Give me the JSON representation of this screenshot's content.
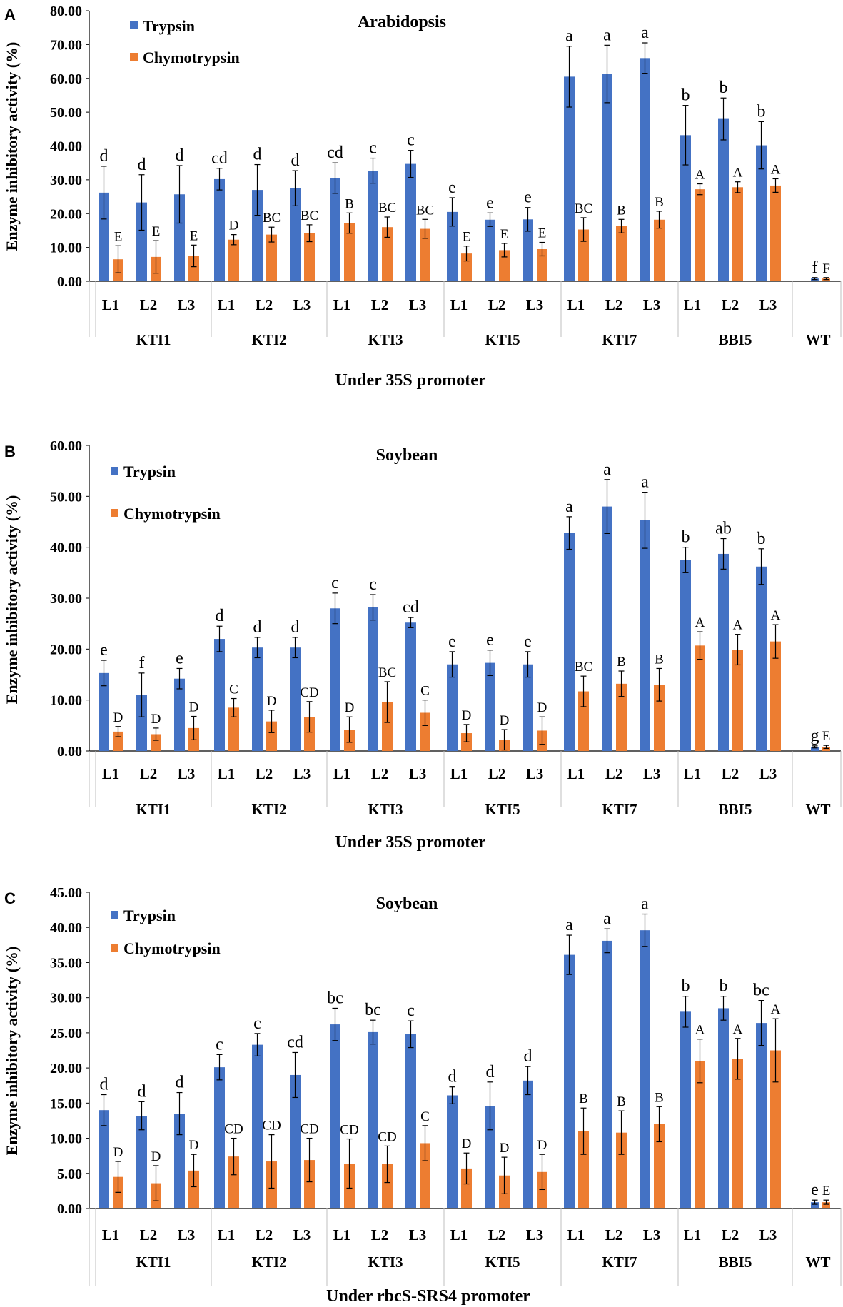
{
  "colors": {
    "trypsin": "#4472C4",
    "chymotrypsin": "#ED7D31",
    "axis": "#000000",
    "grid_sep": "#BFBFBF"
  },
  "chart_data": [
    {
      "panel": "A",
      "type": "bar",
      "title": "Arabidopsis",
      "ylabel": "Enzyme inhibitory activity (%)",
      "xlabel": "Under 35S promoter",
      "ylim": [
        0,
        80
      ],
      "ytick_step": 10,
      "yticks": [
        "0.00",
        "10.00",
        "20.00",
        "30.00",
        "40.00",
        "50.00",
        "60.00",
        "70.00",
        "80.00"
      ],
      "legend": [
        "Trypsin",
        "Chymotrypsin"
      ],
      "groups": [
        {
          "name": "KTI1",
          "lines": [
            "L1",
            "L2",
            "L3"
          ]
        },
        {
          "name": "KTI2",
          "lines": [
            "L1",
            "L2",
            "L3"
          ]
        },
        {
          "name": "KTI3",
          "lines": [
            "L1",
            "L2",
            "L3"
          ]
        },
        {
          "name": "KTI5",
          "lines": [
            "L1",
            "L2",
            "L3"
          ]
        },
        {
          "name": "KTI7",
          "lines": [
            "L1",
            "L2",
            "L3"
          ]
        },
        {
          "name": "BBI5",
          "lines": [
            "L1",
            "L2",
            "L3"
          ]
        },
        {
          "name": "WT",
          "lines": [
            ""
          ]
        }
      ],
      "series": [
        {
          "name": "Trypsin",
          "values": [
            26.2,
            23.3,
            25.7,
            30.2,
            27.0,
            27.5,
            30.5,
            32.7,
            34.7,
            20.5,
            18.2,
            18.3,
            60.5,
            61.3,
            66.0,
            43.2,
            48.0,
            40.2,
            0.8
          ],
          "errors": [
            7.8,
            8.2,
            8.5,
            3.2,
            7.5,
            5.2,
            4.5,
            3.7,
            4.0,
            4.2,
            2.0,
            3.5,
            9.0,
            8.5,
            4.5,
            8.8,
            6.2,
            7.0,
            0.3
          ],
          "letters": [
            "d",
            "d",
            "d",
            "cd",
            "d",
            "d",
            "cd",
            "c",
            "c",
            "e",
            "e",
            "e",
            "a",
            "a",
            "a",
            "b",
            "b",
            "b",
            "f"
          ]
        },
        {
          "name": "Chymotrypsin",
          "values": [
            6.5,
            7.2,
            7.5,
            12.3,
            13.8,
            14.2,
            17.2,
            16.0,
            15.5,
            8.2,
            9.2,
            9.5,
            15.3,
            16.3,
            18.2,
            27.2,
            27.8,
            28.3,
            0.8
          ],
          "errors": [
            4.0,
            4.8,
            3.2,
            1.5,
            2.2,
            2.5,
            3.0,
            3.0,
            2.8,
            2.2,
            2.0,
            2.0,
            3.5,
            2.0,
            2.5,
            1.6,
            1.6,
            2.0,
            0.3
          ],
          "letters": [
            "E",
            "E",
            "E",
            "D",
            "BC",
            "BC",
            "B",
            "BC",
            "BC",
            "E",
            "E",
            "E",
            "BC",
            "B",
            "B",
            "A",
            "A",
            "A",
            "F"
          ]
        }
      ]
    },
    {
      "panel": "B",
      "type": "bar",
      "title": "Soybean",
      "ylabel": "Enzyme inhibitory activity (%)",
      "xlabel": "Under 35S promoter",
      "ylim": [
        0,
        60
      ],
      "ytick_step": 10,
      "yticks": [
        "0.00",
        "10.00",
        "20.00",
        "30.00",
        "40.00",
        "50.00",
        "60.00"
      ],
      "legend": [
        "Trypsin",
        "Chymotrypsin"
      ],
      "groups": [
        {
          "name": "KTI1",
          "lines": [
            "L1",
            "L2",
            "L3"
          ]
        },
        {
          "name": "KTI2",
          "lines": [
            "L1",
            "L2",
            "L3"
          ]
        },
        {
          "name": "KTI3",
          "lines": [
            "L1",
            "L2",
            "L3"
          ]
        },
        {
          "name": "KTI5",
          "lines": [
            "L1",
            "L2",
            "L3"
          ]
        },
        {
          "name": "KTI7",
          "lines": [
            "L1",
            "L2",
            "L3"
          ]
        },
        {
          "name": "BBI5",
          "lines": [
            "L1",
            "L2",
            "L3"
          ]
        },
        {
          "name": "WT",
          "lines": [
            ""
          ]
        }
      ],
      "series": [
        {
          "name": "Trypsin",
          "values": [
            15.3,
            11.0,
            14.2,
            22.0,
            20.3,
            20.3,
            28.0,
            28.2,
            25.2,
            17.0,
            17.3,
            17.0,
            42.8,
            48.0,
            45.3,
            37.5,
            38.7,
            36.2,
            0.8
          ],
          "errors": [
            2.5,
            4.3,
            2.0,
            2.5,
            2.0,
            2.0,
            3.0,
            2.5,
            1.0,
            2.5,
            2.5,
            2.5,
            3.2,
            5.3,
            5.5,
            2.5,
            3.0,
            3.5,
            0.2
          ],
          "letters": [
            "e",
            "f",
            "e",
            "d",
            "d",
            "d",
            "c",
            "c",
            "cd",
            "e",
            "e",
            "e",
            "a",
            "a",
            "a",
            "b",
            "ab",
            "b",
            "g"
          ]
        },
        {
          "name": "Chymotrypsin",
          "values": [
            3.8,
            3.3,
            4.5,
            8.5,
            5.8,
            6.7,
            4.2,
            9.6,
            7.5,
            3.5,
            2.2,
            4.0,
            11.7,
            13.2,
            13.0,
            20.7,
            19.9,
            21.5,
            0.8
          ],
          "errors": [
            1.0,
            1.2,
            2.3,
            1.8,
            2.2,
            3.0,
            2.5,
            4.0,
            2.5,
            1.7,
            2.0,
            2.7,
            3.0,
            2.5,
            3.2,
            2.7,
            3.0,
            3.3,
            0.3
          ],
          "letters": [
            "D",
            "D",
            "D",
            "C",
            "D",
            "CD",
            "D",
            "BC",
            "C",
            "D",
            "D",
            "D",
            "BC",
            "B",
            "B",
            "A",
            "A",
            "A",
            "E"
          ]
        }
      ]
    },
    {
      "panel": "C",
      "type": "bar",
      "title": "Soybean",
      "ylabel": "Enzyme inhibitory activity (%)",
      "xlabel": "Under rbcS-SRS4 promoter",
      "ylim": [
        0,
        45
      ],
      "ytick_step": 5,
      "yticks": [
        "0.00",
        "5.00",
        "10.00",
        "15.00",
        "20.00",
        "25.00",
        "30.00",
        "35.00",
        "40.00",
        "45.00"
      ],
      "legend": [
        "Trypsin",
        "Chymotrypsin"
      ],
      "groups": [
        {
          "name": "KTI1",
          "lines": [
            "L1",
            "L2",
            "L3"
          ]
        },
        {
          "name": "KTI2",
          "lines": [
            "L1",
            "L2",
            "L3"
          ]
        },
        {
          "name": "KTI3",
          "lines": [
            "L1",
            "L2",
            "L3"
          ]
        },
        {
          "name": "KTI5",
          "lines": [
            "L1",
            "L2",
            "L3"
          ]
        },
        {
          "name": "KTI7",
          "lines": [
            "L1",
            "L2",
            "L3"
          ]
        },
        {
          "name": "BBI5",
          "lines": [
            "L1",
            "L2",
            "L3"
          ]
        },
        {
          "name": "WT",
          "lines": [
            ""
          ]
        }
      ],
      "series": [
        {
          "name": "Trypsin",
          "values": [
            14.0,
            13.2,
            13.5,
            20.1,
            23.3,
            19.0,
            26.2,
            25.1,
            24.8,
            16.1,
            14.6,
            18.2,
            36.1,
            38.1,
            39.6,
            28.0,
            28.5,
            26.4,
            0.9
          ],
          "errors": [
            2.2,
            2.0,
            3.0,
            1.8,
            1.6,
            3.2,
            2.3,
            1.7,
            1.9,
            1.2,
            3.4,
            2.0,
            2.8,
            1.7,
            2.3,
            2.2,
            1.7,
            3.2,
            0.3
          ],
          "letters": [
            "d",
            "d",
            "d",
            "c",
            "c",
            "cd",
            "bc",
            "bc",
            "c",
            "d",
            "d",
            "d",
            "a",
            "a",
            "a",
            "b",
            "b",
            "bc",
            "e"
          ]
        },
        {
          "name": "Chymotrypsin",
          "values": [
            4.5,
            3.6,
            5.4,
            7.4,
            6.7,
            6.9,
            6.4,
            6.3,
            9.3,
            5.7,
            4.7,
            5.2,
            11.0,
            10.8,
            12.0,
            21.0,
            21.3,
            22.5,
            0.9
          ],
          "errors": [
            2.2,
            2.5,
            2.3,
            2.6,
            3.8,
            3.1,
            3.5,
            2.6,
            2.5,
            2.2,
            2.6,
            2.5,
            3.3,
            3.1,
            2.5,
            3.1,
            2.9,
            4.5,
            0.3
          ],
          "letters": [
            "D",
            "D",
            "D",
            "CD",
            "CD",
            "CD",
            "CD",
            "CD",
            "C",
            "D",
            "D",
            "D",
            "B",
            "B",
            "B",
            "A",
            "A",
            "A",
            "E"
          ]
        }
      ]
    }
  ]
}
